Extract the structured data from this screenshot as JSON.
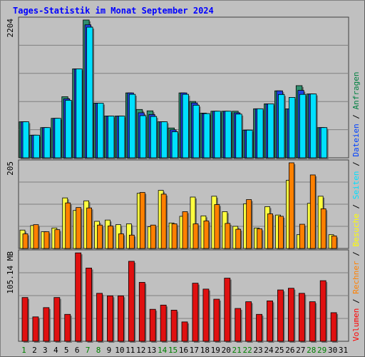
{
  "title": "Tages-Statistik im Monat September 2024",
  "right_legend": [
    {
      "text": "Volumen",
      "color": "#ff0000"
    },
    {
      "text": " / ",
      "color": "#000000"
    },
    {
      "text": "Rechner",
      "color": "#ff8000"
    },
    {
      "text": " / ",
      "color": "#000000"
    },
    {
      "text": "Besuche",
      "color": "#ffff00"
    },
    {
      "text": " / ",
      "color": "#000000"
    },
    {
      "text": "Seiten",
      "color": "#00e0ff"
    },
    {
      "text": " / ",
      "color": "#000000"
    },
    {
      "text": "Dateien",
      "color": "#0040ff"
    },
    {
      "text": " / ",
      "color": "#000000"
    },
    {
      "text": "Anfragen",
      "color": "#008040"
    }
  ],
  "colors": {
    "anfragen": "#2f8f6f",
    "dateien": "#2040e0",
    "seiten": "#00e0ff",
    "besuche": "#ffff40",
    "rechner": "#ff8000",
    "volumen": "#e01010",
    "weekend_label": "#008000",
    "weekday_label": "#000000"
  },
  "chart_data": [
    {
      "type": "bar",
      "panel": "top",
      "ymax_label": "2204",
      "ymax": 2204,
      "categories": [
        "1",
        "2",
        "3",
        "4",
        "5",
        "6",
        "7",
        "8",
        "9",
        "10",
        "11",
        "12",
        "13",
        "14",
        "15",
        "16",
        "17",
        "18",
        "19",
        "20",
        "21",
        "22",
        "23",
        "24",
        "25",
        "26",
        "27",
        "28",
        "29",
        "30",
        "31"
      ],
      "weekend": [
        1,
        7,
        8,
        14,
        15,
        21,
        22,
        28,
        29
      ],
      "series": [
        {
          "name": "Anfragen",
          "values": [
            576,
            362,
            483,
            631,
            977,
            1422,
            2204,
            874,
            668,
            668,
            1038,
            773,
            751,
            576,
            477,
            1038,
            901,
            715,
            745,
            745,
            745,
            442,
            784,
            863,
            1071,
            783,
            1154,
            1021,
            483,
            0,
            0
          ]
        },
        {
          "name": "Dateien",
          "values": [
            576,
            362,
            483,
            631,
            943,
            1422,
            2127,
            874,
            668,
            668,
            1038,
            720,
            692,
            576,
            447,
            1038,
            878,
            707,
            745,
            745,
            720,
            442,
            784,
            863,
            1071,
            783,
            1078,
            1021,
            483,
            0,
            0
          ]
        },
        {
          "name": "Seiten",
          "values": [
            576,
            362,
            483,
            631,
            920,
            1422,
            2089,
            874,
            668,
            668,
            1015,
            674,
            661,
            576,
            416,
            1015,
            841,
            707,
            745,
            745,
            699,
            442,
            784,
            863,
            1012,
            966,
            1014,
            1021,
            483,
            0,
            0
          ]
        }
      ]
    },
    {
      "type": "bar",
      "panel": "middle",
      "ymax_label": "205",
      "ymax": 205,
      "categories": [
        "1",
        "2",
        "3",
        "4",
        "5",
        "6",
        "7",
        "8",
        "9",
        "10",
        "11",
        "12",
        "13",
        "14",
        "15",
        "16",
        "17",
        "18",
        "19",
        "20",
        "21",
        "22",
        "23",
        "24",
        "25",
        "26",
        "27",
        "28",
        "29",
        "30",
        "31"
      ],
      "series": [
        {
          "name": "Besuche",
          "values": [
            44,
            55,
            40,
            49,
            121,
            91,
            114,
            65,
            68,
            57,
            59,
            132,
            52,
            139,
            61,
            77,
            123,
            78,
            125,
            88,
            53,
            107,
            49,
            100,
            80,
            163,
            33,
            108,
            125,
            33,
            0
          ]
        },
        {
          "name": "Rechner",
          "values": [
            35,
            57,
            40,
            45,
            109,
            98,
            97,
            56,
            54,
            35,
            32,
            134,
            56,
            130,
            59,
            88,
            59,
            66,
            105,
            60,
            46,
            117,
            47,
            83,
            77,
            205,
            58,
            176,
            95,
            30,
            0
          ]
        }
      ]
    },
    {
      "type": "bar",
      "panel": "bottom",
      "ymax_label": "105.14 MB",
      "ymax": 105.14,
      "unit": "MB",
      "categories": [
        "1",
        "2",
        "3",
        "4",
        "5",
        "6",
        "7",
        "8",
        "9",
        "10",
        "11",
        "12",
        "13",
        "14",
        "15",
        "16",
        "17",
        "18",
        "19",
        "20",
        "21",
        "22",
        "23",
        "24",
        "25",
        "26",
        "27",
        "28",
        "29",
        "30",
        "31"
      ],
      "series": [
        {
          "name": "Volumen",
          "values": [
            52,
            29,
            40,
            52,
            32,
            105,
            87,
            57,
            54,
            54,
            95,
            70,
            38,
            43,
            37,
            23,
            69,
            62,
            50,
            75,
            39,
            47,
            32,
            48,
            61,
            63,
            57,
            47,
            72,
            34,
            0
          ]
        }
      ]
    }
  ]
}
